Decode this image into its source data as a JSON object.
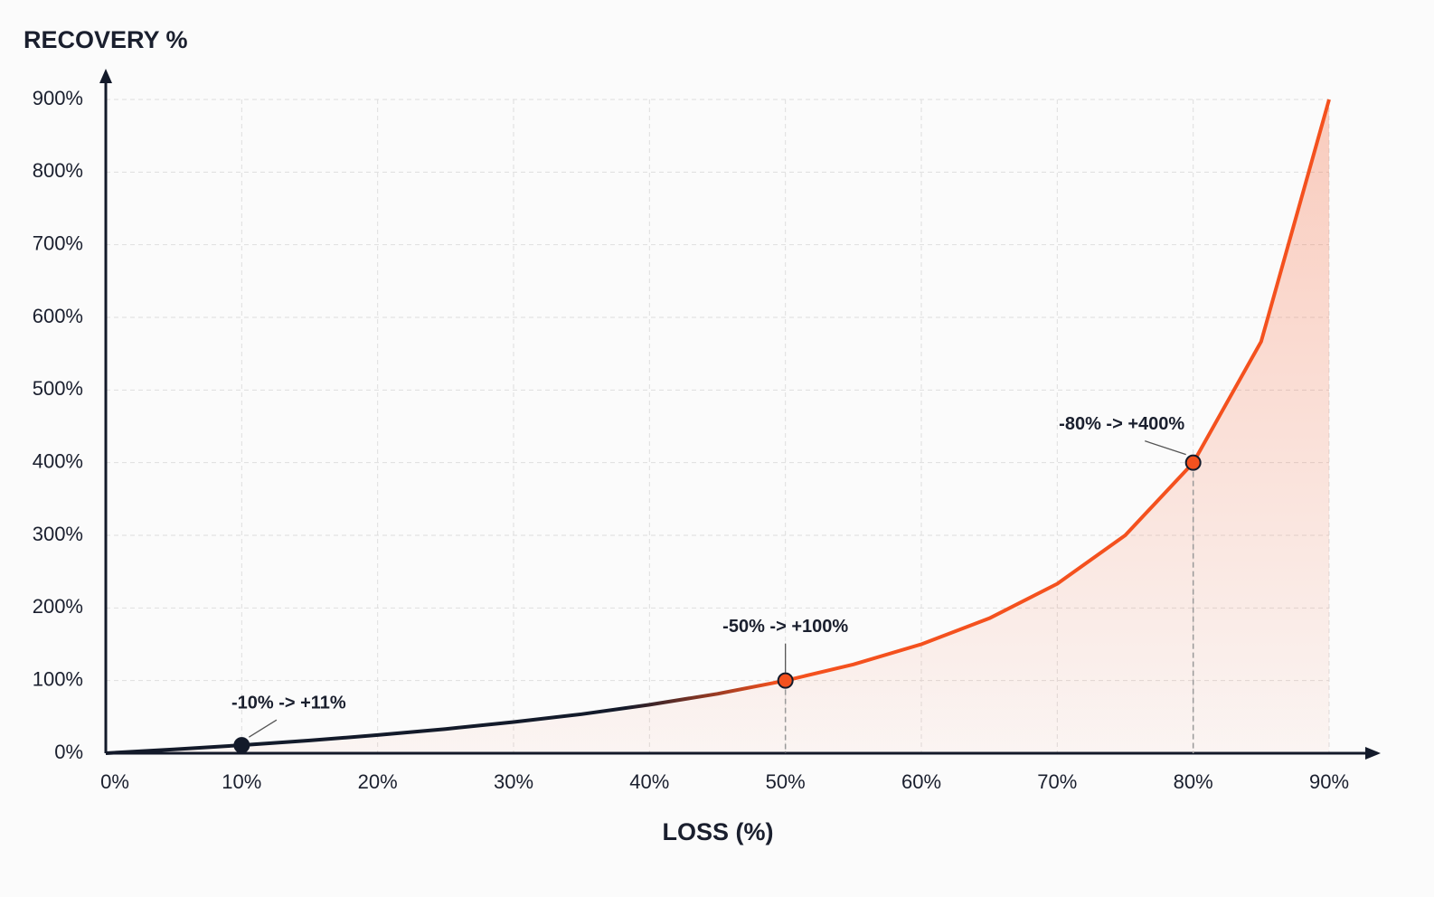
{
  "chart_data": {
    "type": "line",
    "y_axis_label": "RECOVERY %",
    "x_axis_label": "LOSS (%)",
    "x": [
      0,
      5,
      10,
      15,
      20,
      25,
      30,
      35,
      40,
      45,
      50,
      55,
      60,
      65,
      70,
      75,
      80,
      85,
      90
    ],
    "series": [
      {
        "name": "Recovery",
        "color": [
          "#131a2a",
          "#f4511e"
        ],
        "values": [
          0,
          5.3,
          11.1,
          17.6,
          25,
          33.3,
          42.9,
          53.8,
          66.7,
          81.8,
          100,
          122.2,
          150,
          185.7,
          233.3,
          300,
          400,
          566.7,
          900
        ]
      }
    ],
    "annotations": [
      {
        "text": "-10% -> +11%",
        "x": 10,
        "y": 11,
        "color": "#131a2a"
      },
      {
        "text": "-50% -> +100%",
        "x": 50,
        "y": 100,
        "color": "#f4511e"
      },
      {
        "text": "-80% -> +400%",
        "x": 80,
        "y": 400,
        "color": "#f4511e"
      }
    ],
    "xlim": [
      0,
      90
    ],
    "ylim": [
      0,
      900
    ],
    "xticks": [
      {
        "value": 0,
        "label": "0%"
      },
      {
        "value": 10,
        "label": "10%"
      },
      {
        "value": 20,
        "label": "20%"
      },
      {
        "value": 30,
        "label": "30%"
      },
      {
        "value": 40,
        "label": "40%"
      },
      {
        "value": 50,
        "label": "50%"
      },
      {
        "value": 60,
        "label": "60%"
      },
      {
        "value": 70,
        "label": "70%"
      },
      {
        "value": 80,
        "label": "80%"
      },
      {
        "value": 90,
        "label": "90%"
      }
    ],
    "yticks": [
      {
        "value": 0,
        "label": "0%"
      },
      {
        "value": 100,
        "label": "100%"
      },
      {
        "value": 200,
        "label": "200%"
      },
      {
        "value": 300,
        "label": "300%"
      },
      {
        "value": 400,
        "label": "400%"
      },
      {
        "value": 500,
        "label": "500%"
      },
      {
        "value": 600,
        "label": "600%"
      },
      {
        "value": 700,
        "label": "700%"
      },
      {
        "value": 800,
        "label": "800%"
      },
      {
        "value": 900,
        "label": "900%"
      }
    ],
    "grid": true
  }
}
